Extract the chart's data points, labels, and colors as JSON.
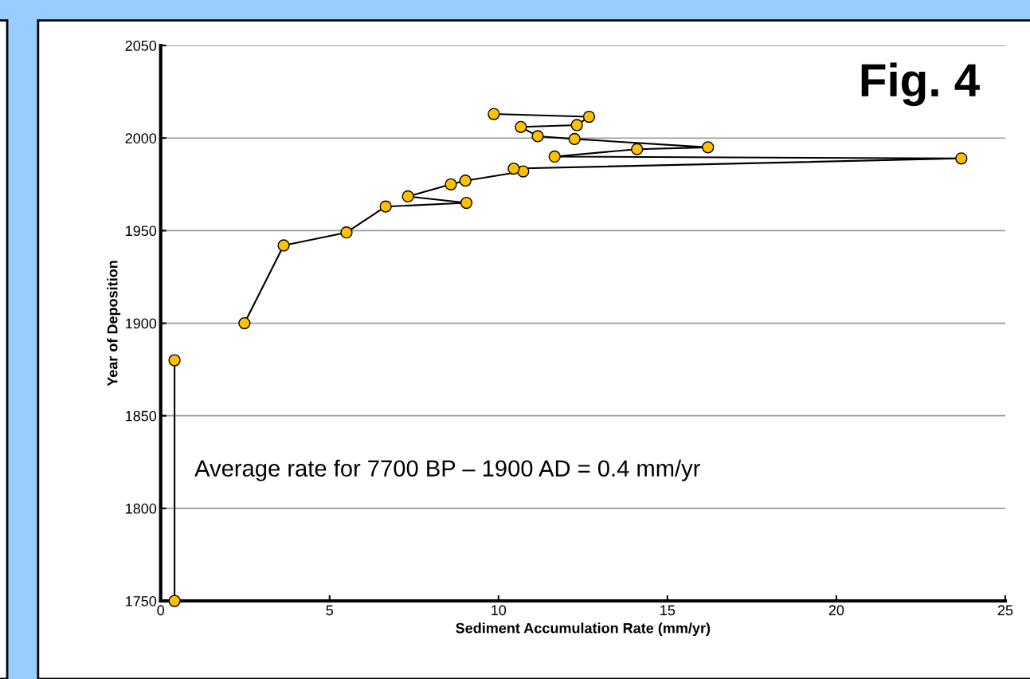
{
  "chart_data": {
    "type": "line",
    "xlabel": "Sediment Accumulation Rate (mm/yr)",
    "ylabel": "Year of Deposition",
    "series": [
      {
        "color": "#ffc000",
        "x": [
          0.41,
          0.41
        ],
        "values": [
          1750,
          1880
        ]
      },
      {
        "color": "#ffc000",
        "x": [
          2.48,
          3.64,
          5.5,
          6.66,
          9.05,
          7.32,
          8.59,
          9.02,
          10.73,
          10.45,
          23.7,
          11.66,
          14.1,
          16.2,
          12.25,
          11.16,
          10.66,
          12.32,
          12.68,
          9.86
        ],
        "values": [
          1900,
          1942,
          1949,
          1963,
          1965,
          1968.5,
          1975,
          1977,
          1982,
          1983.5,
          1989,
          1990,
          1994,
          1995,
          1999.5,
          2001,
          2006,
          2007,
          2011.5,
          2013
        ]
      }
    ],
    "xlim": [
      0,
      25
    ],
    "xticks": [
      0,
      5,
      10,
      15,
      20,
      25
    ],
    "ylim": [
      1750,
      2050
    ],
    "yticks": [
      1750,
      1800,
      1850,
      1900,
      1950,
      2000,
      2050
    ],
    "grid": "y",
    "marker": "circle",
    "line_style": "solid",
    "legend": false,
    "annotations": [
      "Fig. 4",
      "Average rate for 7700 BP – 1900 AD = 0.4 mm/yr"
    ]
  }
}
